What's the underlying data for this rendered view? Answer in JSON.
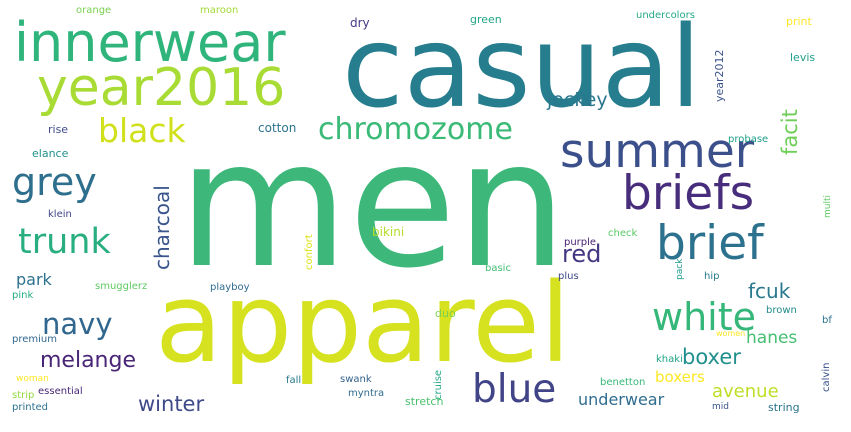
{
  "words": [
    {
      "text": "men",
      "color": "#3db87a"
    },
    {
      "text": "casual",
      "color": "#257d8e"
    },
    {
      "text": "apparel",
      "color": "#d6e21f"
    },
    {
      "text": "innerwear",
      "color": "#2fb47c"
    },
    {
      "text": "year2016",
      "color": "#a8db34"
    },
    {
      "text": "summer",
      "color": "#3b4f8a"
    },
    {
      "text": "briefs",
      "color": "#472d7b"
    },
    {
      "text": "brief",
      "color": "#2c718e"
    },
    {
      "text": "chromozome",
      "color": "#3aba76"
    },
    {
      "text": "black",
      "color": "#d0e11c"
    },
    {
      "text": "grey",
      "color": "#2e6f8e"
    },
    {
      "text": "trunk",
      "color": "#29af7f"
    },
    {
      "text": "blue",
      "color": "#414487"
    },
    {
      "text": "white",
      "color": "#35b779"
    },
    {
      "text": "navy",
      "color": "#31678e"
    },
    {
      "text": "red",
      "color": "#453781"
    },
    {
      "text": "melange",
      "color": "#482576"
    },
    {
      "text": "winter",
      "color": "#3e4a89"
    },
    {
      "text": "underwear",
      "color": "#2f6c8e"
    },
    {
      "text": "boxer",
      "color": "#21908d"
    },
    {
      "text": "boxers",
      "color": "#fde725"
    },
    {
      "text": "avenue",
      "color": "#bddf26"
    },
    {
      "text": "fcuk",
      "color": "#2a788e"
    },
    {
      "text": "hanes",
      "color": "#44bf70"
    },
    {
      "text": "jockey",
      "color": "#2a778e"
    },
    {
      "text": "facit",
      "color": "#6ece58"
    },
    {
      "text": "charcoal",
      "color": "#39558c"
    },
    {
      "text": "park",
      "color": "#2c728e"
    },
    {
      "text": "cotton",
      "color": "#2c738e"
    },
    {
      "text": "dry",
      "color": "#443a83"
    },
    {
      "text": "green",
      "color": "#22a785"
    },
    {
      "text": "orange",
      "color": "#7ad151"
    },
    {
      "text": "maroon",
      "color": "#a2da37"
    },
    {
      "text": "undercolors",
      "color": "#22a884"
    },
    {
      "text": "print",
      "color": "#fde725"
    },
    {
      "text": "year2012",
      "color": "#3b528b"
    },
    {
      "text": "levis",
      "color": "#1f9e89"
    },
    {
      "text": "rise",
      "color": "#3e4a89"
    },
    {
      "text": "elance",
      "color": "#21918c"
    },
    {
      "text": "klein",
      "color": "#3f4788"
    },
    {
      "text": "pink",
      "color": "#25ac82"
    },
    {
      "text": "premium",
      "color": "#30688e"
    },
    {
      "text": "woman",
      "color": "#fde725"
    },
    {
      "text": "strip",
      "color": "#95d840"
    },
    {
      "text": "essential",
      "color": "#482878"
    },
    {
      "text": "printed",
      "color": "#2d708e"
    },
    {
      "text": "smugglerz",
      "color": "#5ec962"
    },
    {
      "text": "playboy",
      "color": "#2f6b8e"
    },
    {
      "text": "confort",
      "color": "#dde318"
    },
    {
      "text": "bikini",
      "color": "#b5de2b"
    },
    {
      "text": "duo",
      "color": "#7ad151"
    },
    {
      "text": "basic",
      "color": "#42be71"
    },
    {
      "text": "plus",
      "color": "#3e4989"
    },
    {
      "text": "purple",
      "color": "#481f70"
    },
    {
      "text": "check",
      "color": "#5ac864"
    },
    {
      "text": "pack",
      "color": "#1e9b8a"
    },
    {
      "text": "hip",
      "color": "#2a788e"
    },
    {
      "text": "multi",
      "color": "#5dc863"
    },
    {
      "text": "bf",
      "color": "#2c728e"
    },
    {
      "text": "calvin",
      "color": "#3b528b"
    },
    {
      "text": "brown",
      "color": "#228b8d"
    },
    {
      "text": "women",
      "color": "#fde725"
    },
    {
      "text": "khaki",
      "color": "#20a386"
    },
    {
      "text": "fall",
      "color": "#2a788e"
    },
    {
      "text": "swank",
      "color": "#33638d"
    },
    {
      "text": "cruise",
      "color": "#22a785"
    },
    {
      "text": "benetton",
      "color": "#37b878"
    },
    {
      "text": "myntra",
      "color": "#2f6c8e"
    },
    {
      "text": "stretch",
      "color": "#4ac16d"
    },
    {
      "text": "mid",
      "color": "#3b528b"
    },
    {
      "text": "string",
      "color": "#2c738e"
    },
    {
      "text": "probase",
      "color": "#1f9e89"
    }
  ]
}
